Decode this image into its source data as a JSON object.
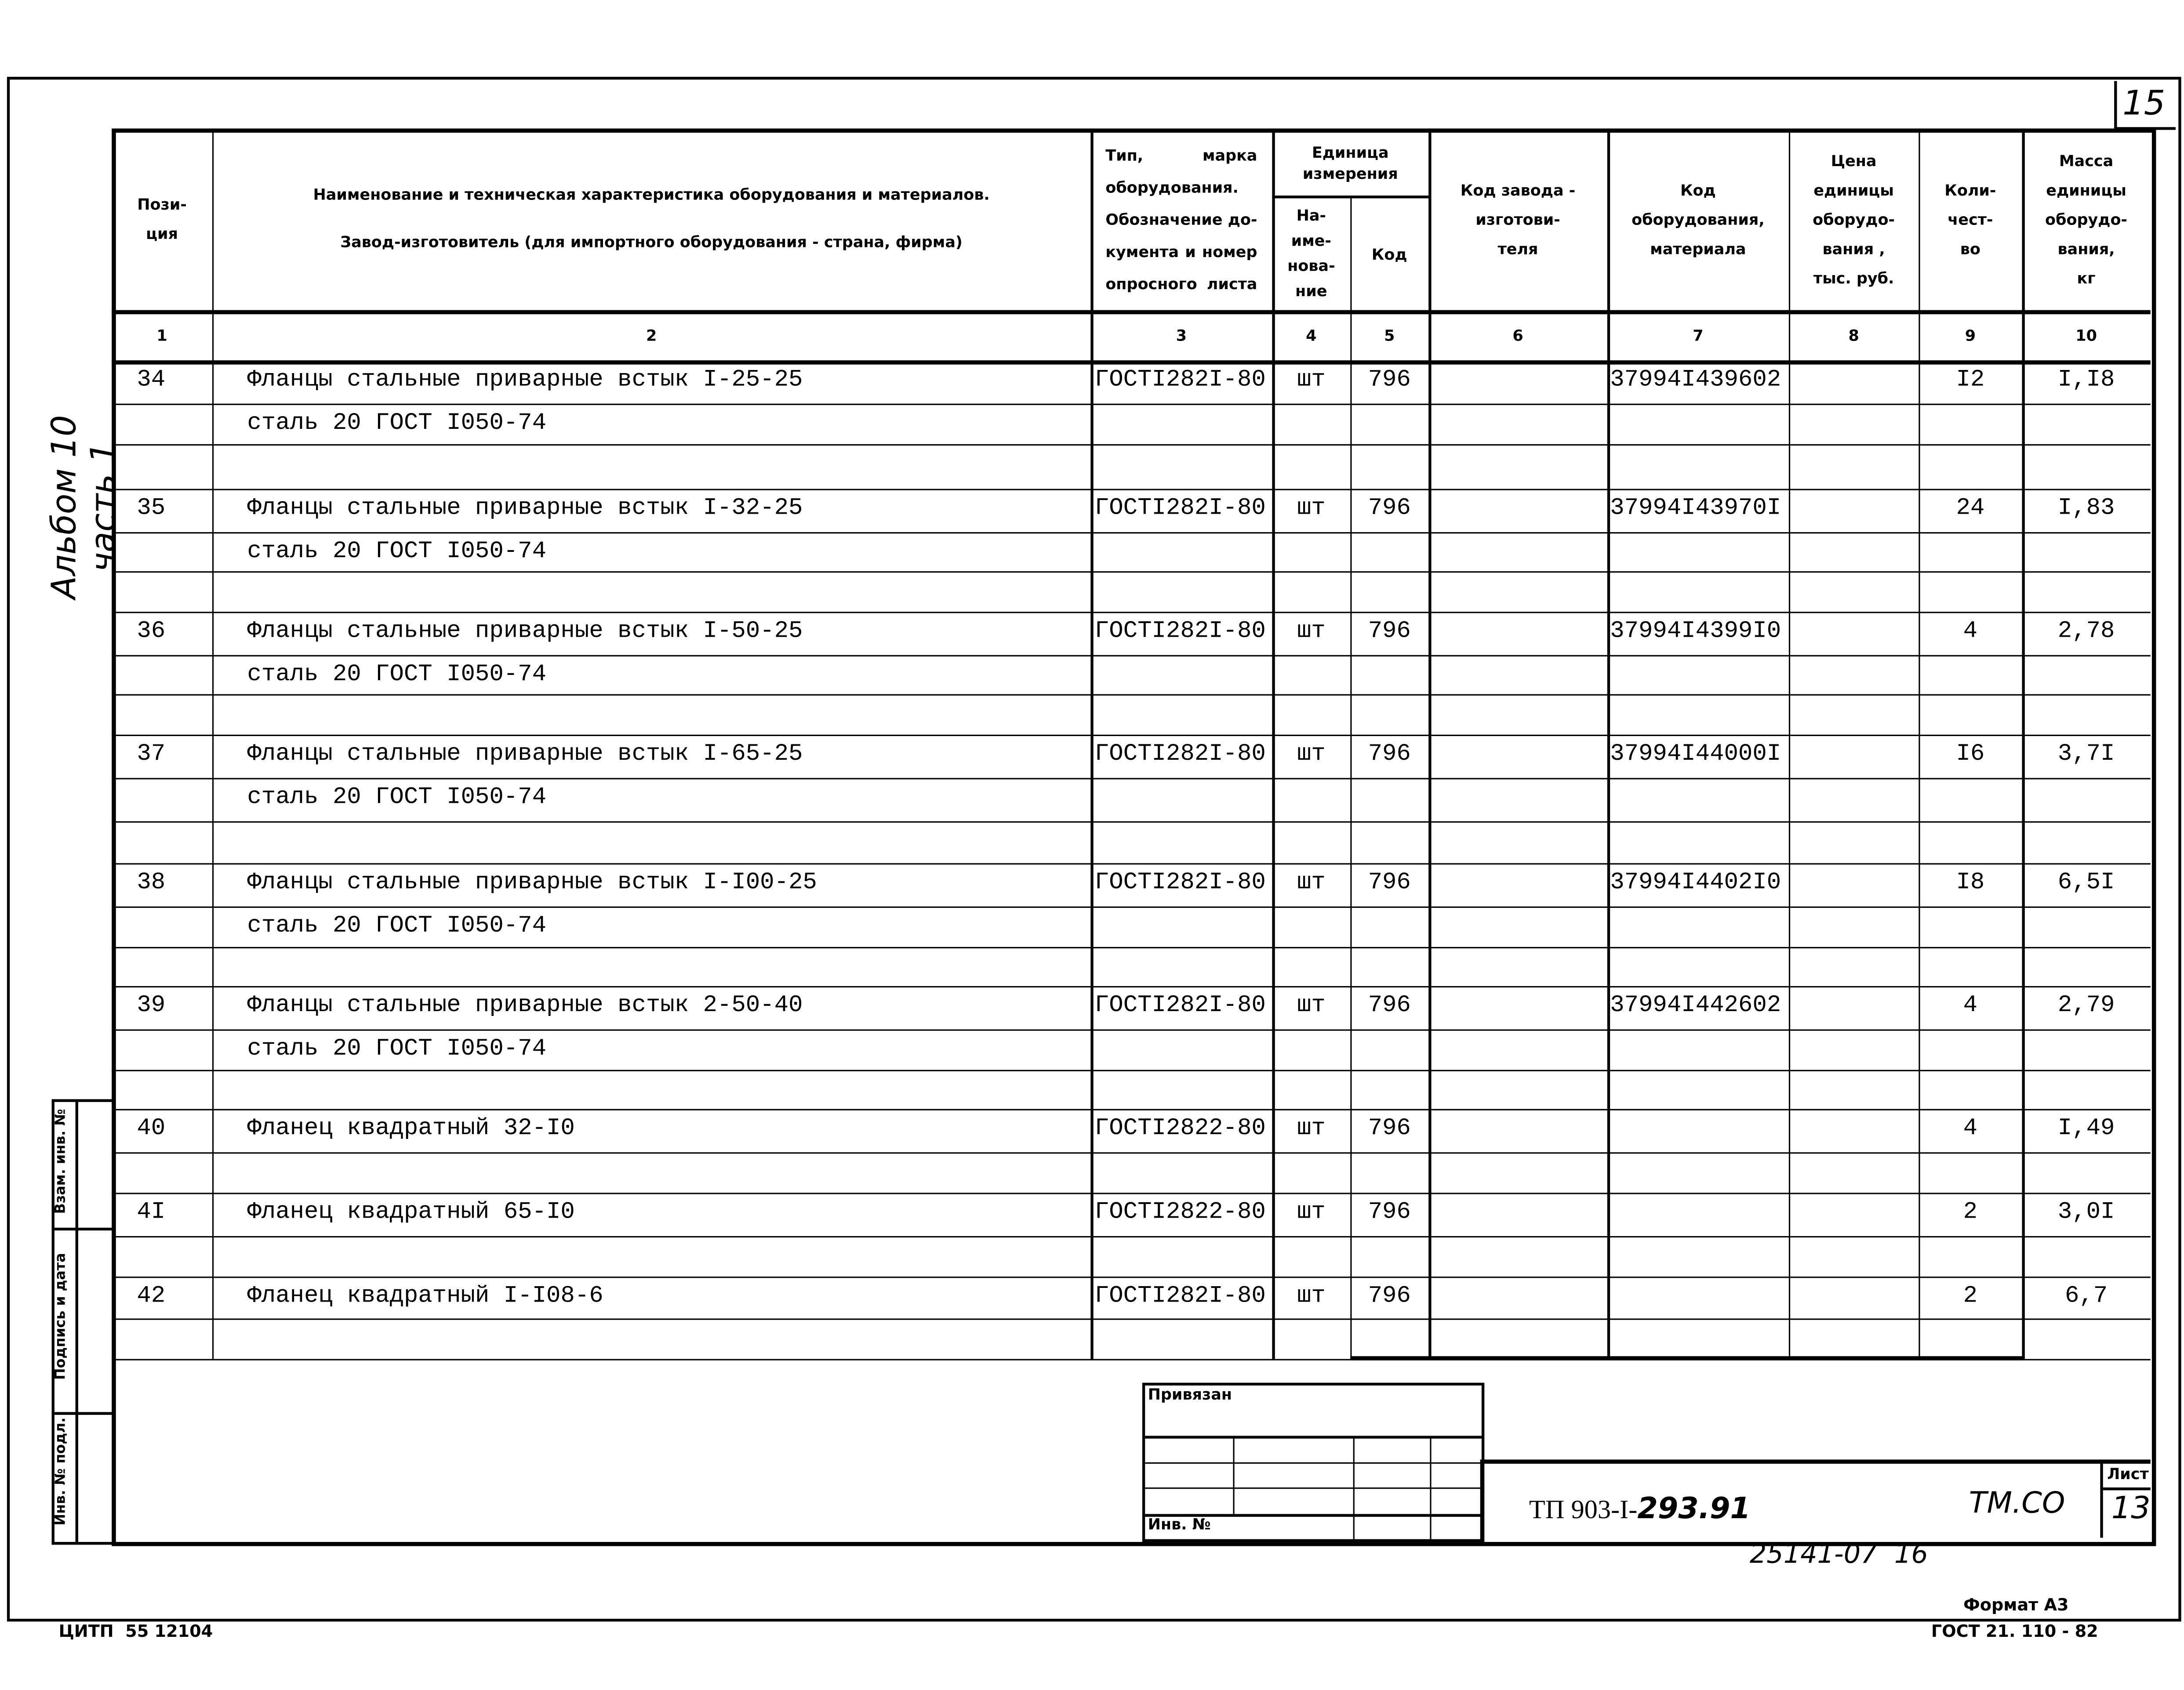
{
  "sheet_corner_number": "15",
  "side_label": "Альбом 10 часть 1",
  "side_stamp": [
    "Взам. инв. №",
    "Подпись и дата",
    "Инв. № подл."
  ],
  "headers": [
    {
      "num": "1",
      "label": "Пози-\nция"
    },
    {
      "num": "2",
      "label": "Наименование и техническая характеристика  оборудования и материалов.\nЗавод-изготовитель  (для импортного оборудования -  страна, фирма)"
    },
    {
      "num": "3",
      "label": "Тип,  марка\nоборудования.\nОбозначение до-\nкумента и номер\nопросного листа"
    },
    {
      "num": "4",
      "label": "На-\nиме-\nнова-\nние"
    },
    {
      "num": "5",
      "label": "Код"
    },
    {
      "num": "6",
      "label": "Код  завода -\nизготови-\nтеля"
    },
    {
      "num": "7",
      "label": "Код\nоборудования,\nматериала"
    },
    {
      "num": "8",
      "label": "Цена\nединицы\nоборудо-\nвания ,\nтыс. руб."
    },
    {
      "num": "9",
      "label": "Коли-\nчест-\nво"
    },
    {
      "num": "10",
      "label": "Масса\nединицы\nоборудо-\nвания,\nкг"
    }
  ],
  "unit_group_header": "Единица\nизмерения",
  "rows": [
    {
      "pos": "34",
      "name": "Фланцы стальные приварные встык I-25-25",
      "name2": "сталь 20 ГОСТ I050-74",
      "doc": "ГОСТI282I-80",
      "unit": "шт",
      "unit_code": "796",
      "factory_code": "",
      "code": "37994I439602",
      "price": "",
      "qty": "I2",
      "mass": "I,I8"
    },
    {
      "pos": "35",
      "name": "Фланцы стальные приварные встык I-32-25",
      "name2": "сталь 20 ГОСТ I050-74",
      "doc": "ГОСТI282I-80",
      "unit": "шт",
      "unit_code": "796",
      "factory_code": "",
      "code": "37994I43970I",
      "price": "",
      "qty": "24",
      "mass": "I,83"
    },
    {
      "pos": "36",
      "name": "Фланцы стальные приварные встык I-50-25",
      "name2": "сталь 20 ГОСТ I050-74",
      "doc": "ГОСТI282I-80",
      "unit": "шт",
      "unit_code": "796",
      "factory_code": "",
      "code": "37994I4399I0",
      "price": "",
      "qty": "4",
      "mass": "2,78"
    },
    {
      "pos": "37",
      "name": "Фланцы стальные приварные встык I-65-25",
      "name2": "сталь 20 ГОСТ I050-74",
      "doc": "ГОСТI282I-80",
      "unit": "шт",
      "unit_code": "796",
      "factory_code": "",
      "code": "37994I44000I",
      "price": "",
      "qty": "I6",
      "mass": "3,7I"
    },
    {
      "pos": "38",
      "name": "Фланцы стальные приварные встык I-I00-25",
      "name2": "сталь 20 ГОСТ I050-74",
      "doc": "ГОСТI282I-80",
      "unit": "шт",
      "unit_code": "796",
      "factory_code": "",
      "code": "37994I4402I0",
      "price": "",
      "qty": "I8",
      "mass": "6,5I"
    },
    {
      "pos": "39",
      "name": "Фланцы стальные приварные встык 2-50-40",
      "name2": "сталь 20 ГОСТ I050-74",
      "doc": "ГОСТI282I-80",
      "unit": "шт",
      "unit_code": "796",
      "factory_code": "",
      "code": "37994I442602",
      "price": "",
      "qty": "4",
      "mass": "2,79"
    },
    {
      "pos": "40",
      "name": "Фланец квадратный 32-I0",
      "name2": "",
      "doc": "ГОСТI2822-80",
      "unit": "шт",
      "unit_code": "796",
      "factory_code": "",
      "code": "",
      "price": "",
      "qty": "4",
      "mass": "I,49"
    },
    {
      "pos": "4I",
      "name": "Фланец квадратный 65-I0",
      "name2": "",
      "doc": "ГОСТI2822-80",
      "unit": "шт",
      "unit_code": "796",
      "factory_code": "",
      "code": "",
      "price": "",
      "qty": "2",
      "mass": "3,0I"
    },
    {
      "pos": "42",
      "name": "Фланец квадратный I-I08-6",
      "name2": "",
      "doc": "ГОСТI282I-80",
      "unit": "шт",
      "unit_code": "796",
      "factory_code": "",
      "code": "",
      "price": "",
      "qty": "2",
      "mass": "6,7"
    }
  ],
  "title_block": {
    "attached_label": "Привязан",
    "inv_label": "Инв. №",
    "document_code": "ТП 903-I-",
    "document_code_handwritten": "293.91",
    "section": "ТМ.СО",
    "sheet_label": "Лист",
    "sheet_number": "13"
  },
  "footer": {
    "order_number": "25141-07  16",
    "format": "Формат А3",
    "left_code": "ЦИТП  55 12104",
    "standard": "ГОСТ 21. 110 - 82"
  }
}
